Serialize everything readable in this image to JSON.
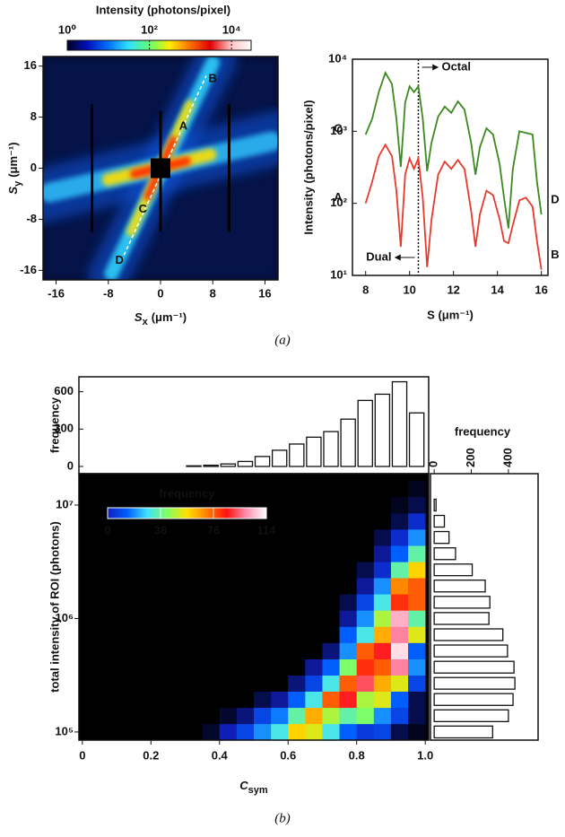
{
  "captions": [
    "(a)",
    "(b)"
  ],
  "chart_data": [
    {
      "type": "image",
      "colorbar": {
        "label": "Intensity (photons/pixel)",
        "lim": [
          1,
          30000
        ],
        "log": true,
        "ticks": [
          {
            "value": 1,
            "label": "10⁰"
          },
          {
            "value": 100,
            "label": "10²"
          },
          {
            "value": 10000,
            "label": "10⁴"
          }
        ],
        "colors": [
          "#000020",
          "#0010c0",
          "#0070ff",
          "#30e0ff",
          "#60ff70",
          "#ffee00",
          "#ff7000",
          "#e00000",
          "#ffc0c0",
          "#ffffff"
        ]
      },
      "xlabel": {
        "symbol": "S",
        "sub": "x",
        "unit": "(μm⁻¹)"
      },
      "ylabel": {
        "symbol": "S",
        "sub": "y",
        "unit": "(μm⁻¹)"
      },
      "xlim": [
        -18,
        18
      ],
      "ylim": [
        -17.5,
        17.5
      ],
      "xticks": [
        -16,
        -8,
        0,
        8,
        16
      ],
      "yticks": [
        -16,
        -8,
        0,
        8,
        16
      ],
      "annotations": [
        "A",
        "B",
        "C",
        "D"
      ]
    },
    {
      "type": "line",
      "xlabel": "S (μm⁻¹)",
      "ylabel": "Intensity (photons/pixel)",
      "log_y": true,
      "xlim": [
        7.4,
        16.3
      ],
      "ylim": [
        10,
        10000
      ],
      "xticks": [
        8,
        10,
        12,
        14,
        16
      ],
      "yticks": [
        {
          "value": 10,
          "label": "10¹"
        },
        {
          "value": 100,
          "label": "10²"
        },
        {
          "value": 1000,
          "label": "10³"
        },
        {
          "value": 10000,
          "label": "10⁴"
        }
      ],
      "x": [
        8.0,
        8.3,
        8.6,
        8.9,
        9.2,
        9.4,
        9.6,
        9.8,
        10.0,
        10.2,
        10.4,
        10.6,
        10.8,
        11.0,
        11.3,
        11.6,
        11.9,
        12.2,
        12.5,
        12.8,
        13.0,
        13.2,
        13.5,
        13.8,
        14.1,
        14.3,
        14.5,
        14.7,
        15.0,
        15.3,
        15.6,
        15.8,
        16.0
      ],
      "series": [
        {
          "name": "C",
          "end_label": "D",
          "color": "#3a8a1e",
          "values": [
            900,
            1500,
            3500,
            6500,
            4500,
            1500,
            320,
            2500,
            4200,
            3500,
            4200,
            1500,
            280,
            700,
            1600,
            2200,
            1800,
            2600,
            2000,
            700,
            250,
            600,
            1100,
            900,
            350,
            120,
            45,
            300,
            1000,
            950,
            900,
            200,
            70
          ]
        },
        {
          "name": "A",
          "end_label": "B",
          "color": "#e8392c",
          "values": [
            100,
            200,
            450,
            650,
            450,
            150,
            25,
            250,
            420,
            300,
            420,
            120,
            13,
            60,
            250,
            380,
            300,
            400,
            300,
            80,
            25,
            70,
            150,
            130,
            60,
            30,
            28,
            50,
            110,
            120,
            90,
            30,
            12
          ]
        }
      ],
      "vline": 10.4,
      "annotations": [
        "Octal",
        "Dual"
      ]
    },
    {
      "type": "histogram",
      "ylabel": "frequency",
      "bins": [
        0,
        0.05,
        0.1,
        0.15,
        0.2,
        0.25,
        0.3,
        0.35,
        0.4,
        0.45,
        0.5,
        0.55,
        0.6,
        0.65,
        0.7,
        0.75,
        0.8,
        0.85,
        0.9,
        0.95,
        1
      ],
      "values": [
        0,
        0,
        0,
        0,
        0,
        0,
        5,
        10,
        20,
        40,
        80,
        130,
        180,
        235,
        280,
        380,
        530,
        580,
        680,
        430
      ],
      "xlim": [
        -0.01,
        1.01
      ],
      "ylim": [
        -58,
        720
      ],
      "yticks": [
        0,
        300,
        600
      ],
      "color": "#ffffff"
    },
    {
      "type": "heatmap",
      "xlabel": {
        "symbol": "C",
        "sub": "sym"
      },
      "ylabel": "total intensity of ROI (photons)",
      "log_y": true,
      "xbins": [
        0,
        0.05,
        0.1,
        0.15,
        0.2,
        0.25,
        0.3,
        0.35,
        0.4,
        0.45,
        0.5,
        0.55,
        0.6,
        0.65,
        0.7,
        0.75,
        0.8,
        0.85,
        0.9,
        0.95,
        1
      ],
      "ybins": [
        84800,
        118000,
        164000,
        228000,
        316000,
        439000,
        611000,
        848000,
        1180000,
        1640000,
        2280000,
        3160000,
        4390000,
        6110000,
        8480000,
        11790000,
        16380000
      ],
      "values": [
        [
          0,
          0,
          0,
          0,
          0,
          0,
          0,
          3,
          12,
          20,
          30,
          40,
          65,
          60,
          40,
          25,
          18,
          20,
          5,
          2
        ],
        [
          0,
          0,
          0,
          0,
          0,
          0,
          0,
          0,
          3,
          8,
          20,
          28,
          45,
          70,
          55,
          45,
          50,
          30,
          20,
          5
        ],
        [
          0,
          0,
          0,
          0,
          0,
          0,
          0,
          0,
          0,
          0,
          5,
          10,
          25,
          40,
          80,
          90,
          55,
          60,
          25,
          5
        ],
        [
          0,
          0,
          0,
          0,
          0,
          0,
          0,
          0,
          0,
          0,
          0,
          0,
          8,
          20,
          40,
          80,
          95,
          70,
          60,
          20
        ],
        [
          0,
          0,
          0,
          0,
          0,
          0,
          0,
          0,
          0,
          0,
          0,
          0,
          0,
          10,
          25,
          50,
          85,
          80,
          100,
          30
        ],
        [
          0,
          0,
          0,
          0,
          0,
          0,
          0,
          0,
          0,
          0,
          0,
          0,
          0,
          0,
          8,
          30,
          80,
          90,
          110,
          25
        ],
        [
          0,
          0,
          0,
          0,
          0,
          0,
          0,
          0,
          0,
          0,
          0,
          0,
          0,
          0,
          0,
          25,
          40,
          70,
          100,
          60
        ],
        [
          0,
          0,
          0,
          0,
          0,
          0,
          0,
          0,
          0,
          0,
          0,
          0,
          0,
          0,
          0,
          10,
          30,
          55,
          105,
          45
        ],
        [
          0,
          0,
          0,
          0,
          0,
          0,
          0,
          0,
          0,
          0,
          0,
          0,
          0,
          0,
          0,
          5,
          20,
          40,
          85,
          80
        ],
        [
          0,
          0,
          0,
          0,
          0,
          0,
          0,
          0,
          0,
          0,
          0,
          0,
          0,
          0,
          0,
          0,
          10,
          30,
          75,
          80
        ],
        [
          0,
          0,
          0,
          0,
          0,
          0,
          0,
          0,
          0,
          0,
          0,
          0,
          0,
          0,
          0,
          0,
          5,
          15,
          45,
          65
        ],
        [
          0,
          0,
          0,
          0,
          0,
          0,
          0,
          0,
          0,
          0,
          0,
          0,
          0,
          0,
          0,
          0,
          0,
          10,
          25,
          45
        ],
        [
          0,
          0,
          0,
          0,
          0,
          0,
          0,
          0,
          0,
          0,
          0,
          0,
          0,
          0,
          0,
          0,
          0,
          5,
          15,
          30
        ],
        [
          0,
          0,
          0,
          0,
          0,
          0,
          0,
          0,
          0,
          0,
          0,
          0,
          0,
          0,
          0,
          0,
          0,
          0,
          5,
          15
        ],
        [
          0,
          0,
          0,
          0,
          0,
          0,
          0,
          0,
          0,
          0,
          0,
          0,
          0,
          0,
          0,
          0,
          0,
          0,
          2,
          5
        ],
        [
          0,
          0,
          0,
          0,
          0,
          0,
          0,
          0,
          0,
          0,
          0,
          0,
          0,
          0,
          0,
          0,
          0,
          0,
          0,
          2
        ]
      ],
      "xlim": [
        -0.01,
        1.01
      ],
      "ylim": [
        84800,
        18900000
      ],
      "xticks": [
        0,
        0.2,
        0.4,
        0.6,
        0.8,
        {
          "value": 1,
          "label": "1.0"
        }
      ],
      "yticks": [
        {
          "value": 100000,
          "label": "10⁵"
        },
        {
          "value": 1000000,
          "label": "10⁶"
        },
        {
          "value": 10000000,
          "label": "10⁷"
        }
      ],
      "colorbar": {
        "label": "frequency",
        "lim": [
          0,
          114
        ],
        "ticks": [
          0,
          38,
          76,
          114
        ],
        "colors": [
          "#000000",
          "#1020c0",
          "#0060ff",
          "#40e0ff",
          "#80ff60",
          "#ffe000",
          "#ff8000",
          "#ff1010",
          "#ff90b0",
          "#ffffff"
        ]
      }
    },
    {
      "type": "histogram_h",
      "xlabel": "frequency",
      "log_y": true,
      "bins": [
        84800,
        118000,
        164000,
        228000,
        316000,
        439000,
        611000,
        848000,
        1180000,
        1640000,
        2280000,
        3160000,
        4390000,
        6110000,
        8480000,
        11790000,
        16380000
      ],
      "values": [
        315,
        400,
        425,
        435,
        430,
        395,
        370,
        295,
        300,
        275,
        205,
        115,
        80,
        55,
        10,
        0
      ],
      "xlim": [
        -20,
        560
      ],
      "ylim": [
        84800,
        18900000
      ],
      "xticks": [
        0,
        200,
        400
      ],
      "color": "#ffffff"
    }
  ]
}
